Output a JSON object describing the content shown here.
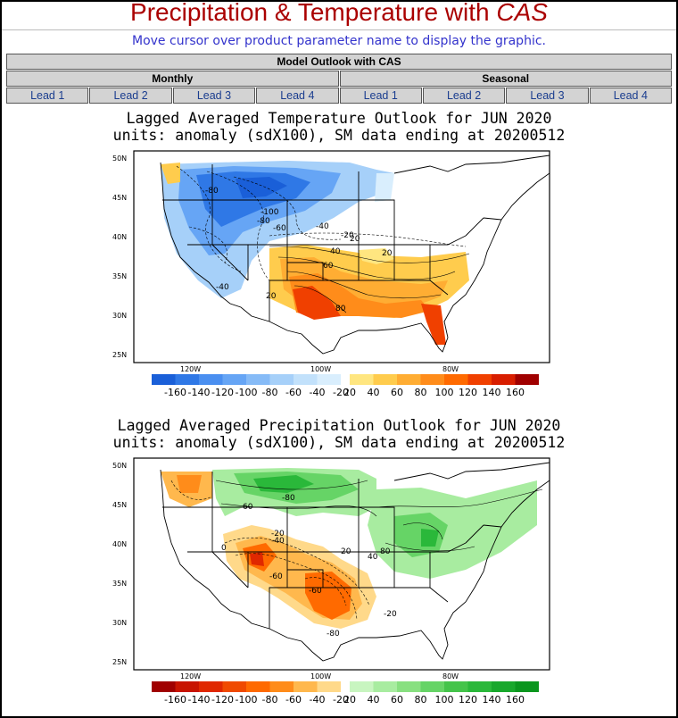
{
  "header": {
    "title_prefix": "Precipitation & Temperature with ",
    "title_em": "CAS",
    "instructions": "Move cursor over product parameter name to display the graphic."
  },
  "nav": {
    "table_title": "Model Outlook with CAS",
    "groups": [
      "Monthly",
      "Seasonal"
    ],
    "monthly_leads": [
      "Lead 1",
      "Lead 2",
      "Lead 3",
      "Lead 4"
    ],
    "seasonal_leads": [
      "Lead 1",
      "Lead 2",
      "Lead 3",
      "Lead 4"
    ]
  },
  "maps": [
    {
      "title_line1": "Lagged Averaged Temperature Outlook for JUN 2020",
      "title_line2": "units: anomaly (sdX100), SM data ending at 20200512",
      "lat_labels": [
        "50N",
        "45N",
        "40N",
        "35N",
        "30N",
        "25N"
      ],
      "lon_labels": [
        "120W",
        "100W",
        "80W"
      ],
      "contour_labels": [
        "-80",
        "-100",
        "-80",
        "-60",
        "-40",
        "-20",
        "-40",
        "20",
        "40",
        "60",
        "20",
        "80",
        "20"
      ],
      "legend_labels": [
        "-160",
        "-140",
        "-120",
        "-100",
        "-80",
        "-60",
        "-40",
        "-20",
        "20",
        "40",
        "60",
        "80",
        "100",
        "120",
        "140",
        "160"
      ],
      "legend_colors": [
        "#1a5fd8",
        "#2f78e6",
        "#4a8ff0",
        "#66a5f5",
        "#86bbf7",
        "#a6d0f9",
        "#c2e1fb",
        "#d9eefd",
        "#ffe680",
        "#ffcc4d",
        "#ffad33",
        "#ff8c1a",
        "#ff6a00",
        "#f04000",
        "#d81e00",
        "#a00000"
      ]
    },
    {
      "title_line1": "Lagged Averaged Precipitation Outlook for JUN 2020",
      "title_line2": "units: anomaly (sdX100), SM data ending at 20200512",
      "lat_labels": [
        "50N",
        "45N",
        "40N",
        "35N",
        "30N",
        "25N"
      ],
      "lon_labels": [
        "120W",
        "100W",
        "80W"
      ],
      "contour_labels": [
        "-80",
        "60",
        "-20",
        "-40",
        "0",
        "-60",
        "-60",
        "20",
        "40",
        "80",
        "-20",
        "-80"
      ],
      "legend_labels": [
        "-160",
        "-140",
        "-120",
        "-100",
        "-80",
        "-60",
        "-40",
        "-20",
        "20",
        "40",
        "60",
        "80",
        "100",
        "120",
        "140",
        "160"
      ],
      "legend_colors": [
        "#a00000",
        "#c81400",
        "#e02800",
        "#f04a00",
        "#ff6a00",
        "#ff8c1a",
        "#ffb84d",
        "#ffd98a",
        "#c8f5c0",
        "#a8eca0",
        "#88e080",
        "#66d466",
        "#44c44a",
        "#2ab83a",
        "#18a82c",
        "#0a961e"
      ]
    }
  ]
}
